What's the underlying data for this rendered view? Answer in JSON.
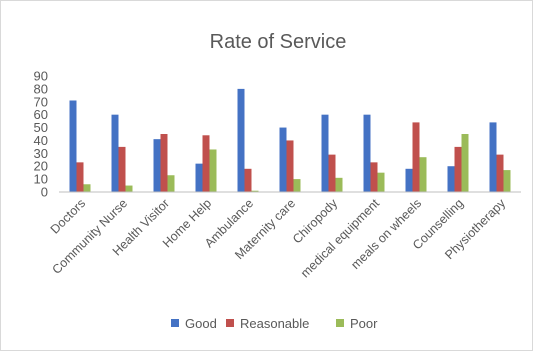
{
  "chart_data": {
    "type": "bar",
    "title": "Rate of Service",
    "xlabel": "",
    "ylabel": "",
    "ylim": [
      0,
      90
    ],
    "yticks": [
      0,
      10,
      20,
      30,
      40,
      50,
      60,
      70,
      80,
      90
    ],
    "grid": false,
    "legend_position": "bottom",
    "categories": [
      "Doctors",
      "Community Nurse",
      "Health Visitor",
      "Home Help",
      "Ambulance",
      "Maternity care",
      "Chiropody",
      "medical equipment",
      "meals on wheels",
      "Counselling",
      "Physiotherapy"
    ],
    "series": [
      {
        "name": "Good",
        "color": "#4472C4",
        "values": [
          71,
          60,
          41,
          22,
          80,
          50,
          60,
          60,
          18,
          20,
          54
        ]
      },
      {
        "name": "Reasonable",
        "color": "#C0504D",
        "values": [
          23,
          35,
          45,
          44,
          18,
          40,
          29,
          23,
          54,
          35,
          29
        ]
      },
      {
        "name": "Poor",
        "color": "#9BBB59",
        "values": [
          6,
          5,
          13,
          33,
          1,
          10,
          11,
          15,
          27,
          45,
          17
        ]
      }
    ]
  }
}
